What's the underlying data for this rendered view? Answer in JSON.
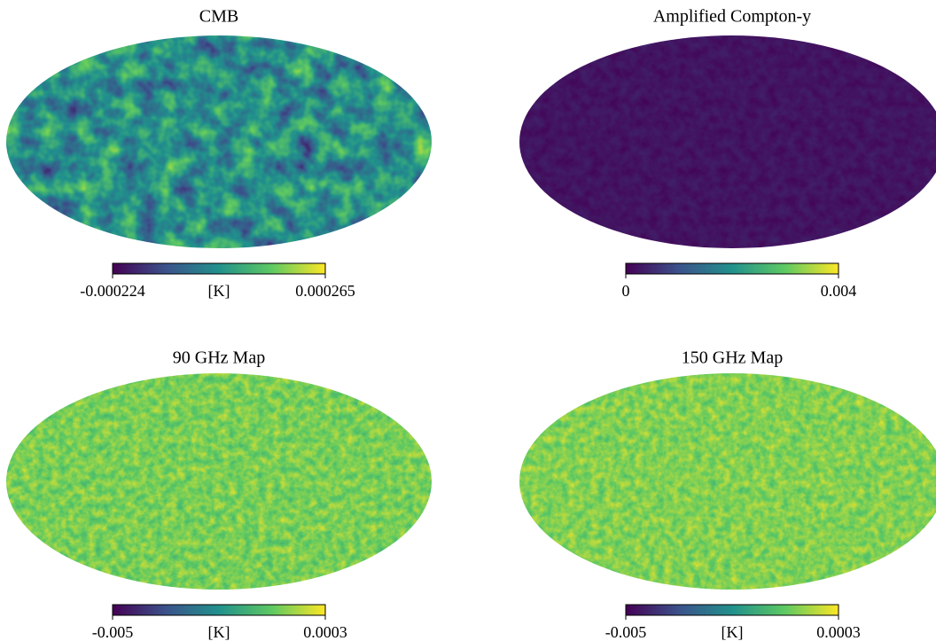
{
  "panels": [
    {
      "title": "CMB",
      "colorbar": {
        "min": -0.000224,
        "unit": "[K]",
        "max": 0.000265
      }
    },
    {
      "title": "Amplified Compton-y",
      "colorbar": {
        "min": 0,
        "max": 0.004
      }
    },
    {
      "title": "90 GHz Map",
      "colorbar": {
        "min": -0.005,
        "unit": "[K]",
        "max": 0.0003
      }
    },
    {
      "title": "150 GHz Map",
      "colorbar": {
        "min": -0.005,
        "unit": "[K]",
        "max": 0.0003
      }
    }
  ]
}
